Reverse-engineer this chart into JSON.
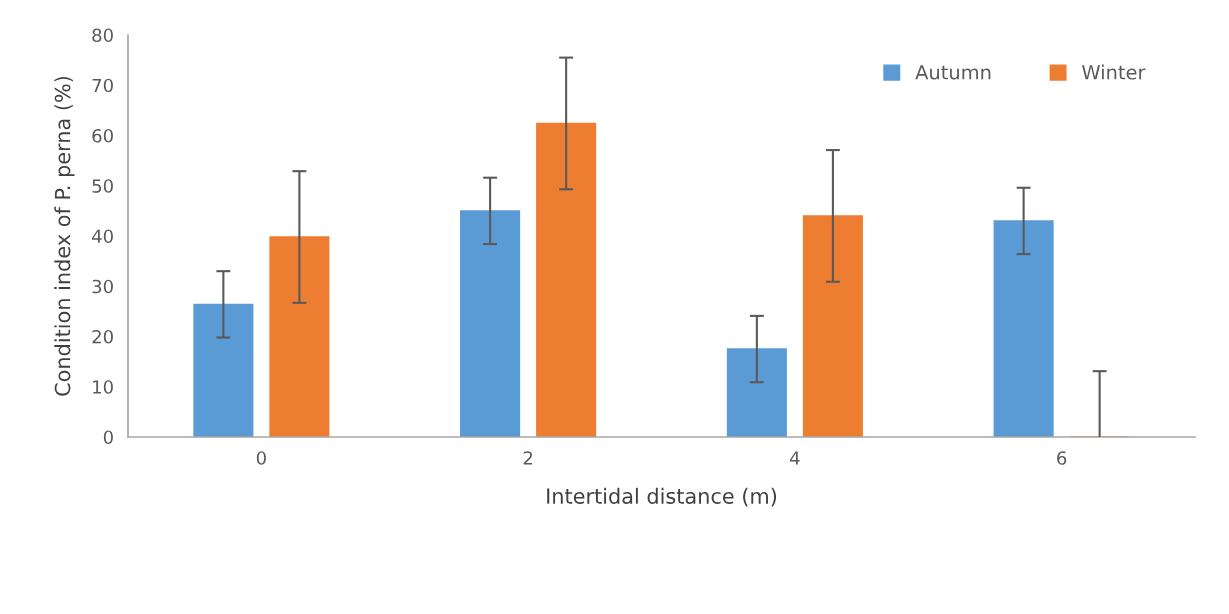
{
  "chart_data": {
    "type": "bar",
    "xlabel": "Intertidal distance (m)",
    "ylabel": "Condition index of P. perna (%)",
    "categories": [
      "0",
      "2",
      "4",
      "6"
    ],
    "series": [
      {
        "name": "Autumn",
        "color": "#5b9bd5",
        "values": [
          26.4,
          45.0,
          17.5,
          43.0
        ],
        "errors": [
          6.6,
          6.6,
          6.6,
          6.6
        ]
      },
      {
        "name": "Winter",
        "color": "#ed7d31",
        "values": [
          39.8,
          62.4,
          44.0,
          0
        ],
        "errors": [
          13.1,
          13.1,
          13.1,
          13.1
        ]
      }
    ],
    "ylim": [
      0,
      80
    ],
    "yticks": [
      0,
      10,
      20,
      30,
      40,
      50,
      60,
      70,
      80
    ],
    "grid": false,
    "legend": "top right"
  }
}
